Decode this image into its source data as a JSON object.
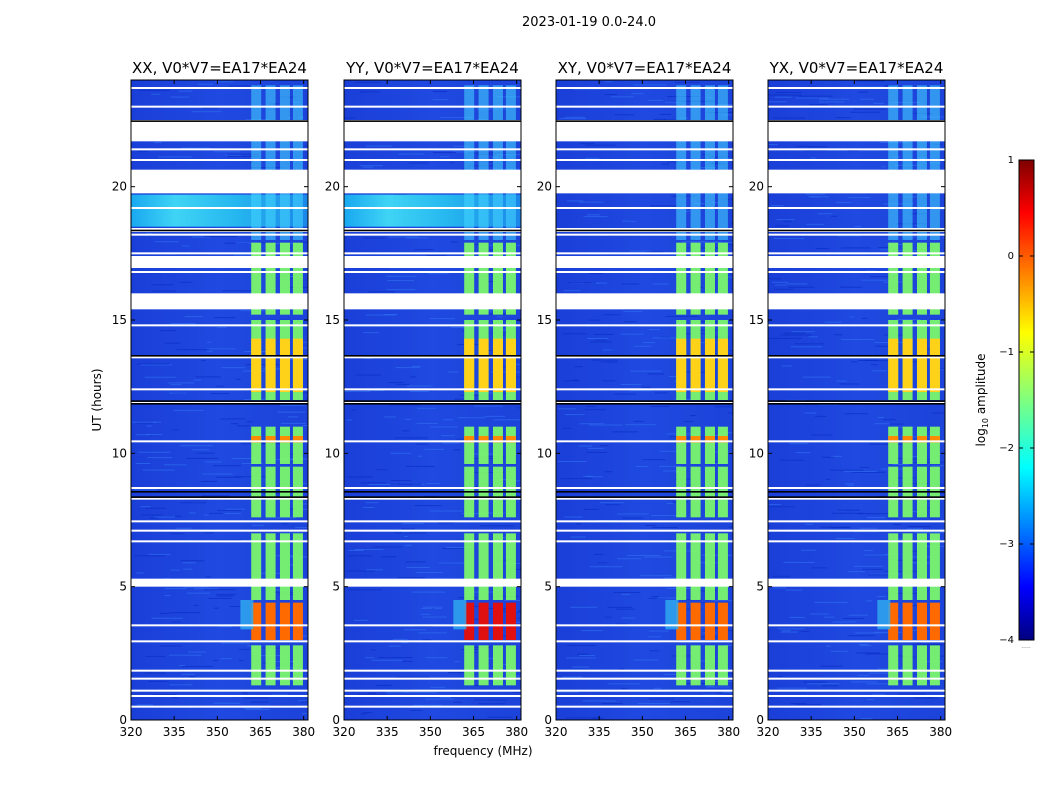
{
  "chart_data": {
    "type": "heatmap",
    "suptitle": "2023-01-19 0.0-24.0",
    "xlabel": "frequency (MHz)",
    "ylabel": "UT (hours)",
    "xlim": [
      320,
      381.5
    ],
    "ylim": [
      0,
      24
    ],
    "xticks": [
      "320",
      "335",
      "350",
      "365",
      "380"
    ],
    "yticks": [
      "0",
      "5",
      "10",
      "15",
      "20"
    ],
    "panels": [
      {
        "title": "XX, V0*V7=EA17*EA24",
        "polarization": "XX"
      },
      {
        "title": "YY, V0*V7=EA17*EA24",
        "polarization": "YY"
      },
      {
        "title": "XY, V0*V7=EA17*EA24",
        "polarization": "XY"
      },
      {
        "title": "YX, V0*V7=EA17*EA24",
        "polarization": "YX"
      }
    ],
    "colorbar": {
      "label": "log",
      "label_sub": "10",
      "label_rest": " amplitude",
      "range": [
        -4,
        1
      ],
      "ticks": [
        "1",
        "0",
        "−1",
        "−2",
        "−3",
        "−4"
      ],
      "colormap": "jet",
      "extra_text": "....."
    },
    "gap_rows_hours": [
      0.5,
      0.9,
      1.1,
      1.55,
      1.85,
      2.95,
      3.55,
      5.2,
      6.7,
      7.1,
      7.45,
      8.3,
      8.7,
      10.45,
      11.9,
      12.4,
      13.6,
      14.8,
      15.9,
      16.8,
      17.5,
      18.2,
      19.2,
      20.6,
      21.0,
      21.4,
      22.4,
      23.0,
      23.7
    ],
    "gap_blocks_hours": [
      [
        5.0,
        5.3
      ],
      [
        18.3,
        18.45
      ],
      [
        19.75,
        20.6
      ],
      [
        21.7,
        22.5
      ],
      [
        15.4,
        16.0
      ],
      [
        16.95,
        17.4
      ]
    ],
    "rfi_channels_mhz": [
      363.5,
      368.5,
      373.5,
      378.0
    ],
    "strong_rfi_hours": [
      [
        3.0,
        4.4
      ],
      [
        10.4,
        10.65
      ],
      [
        12.3,
        14.3
      ]
    ]
  }
}
